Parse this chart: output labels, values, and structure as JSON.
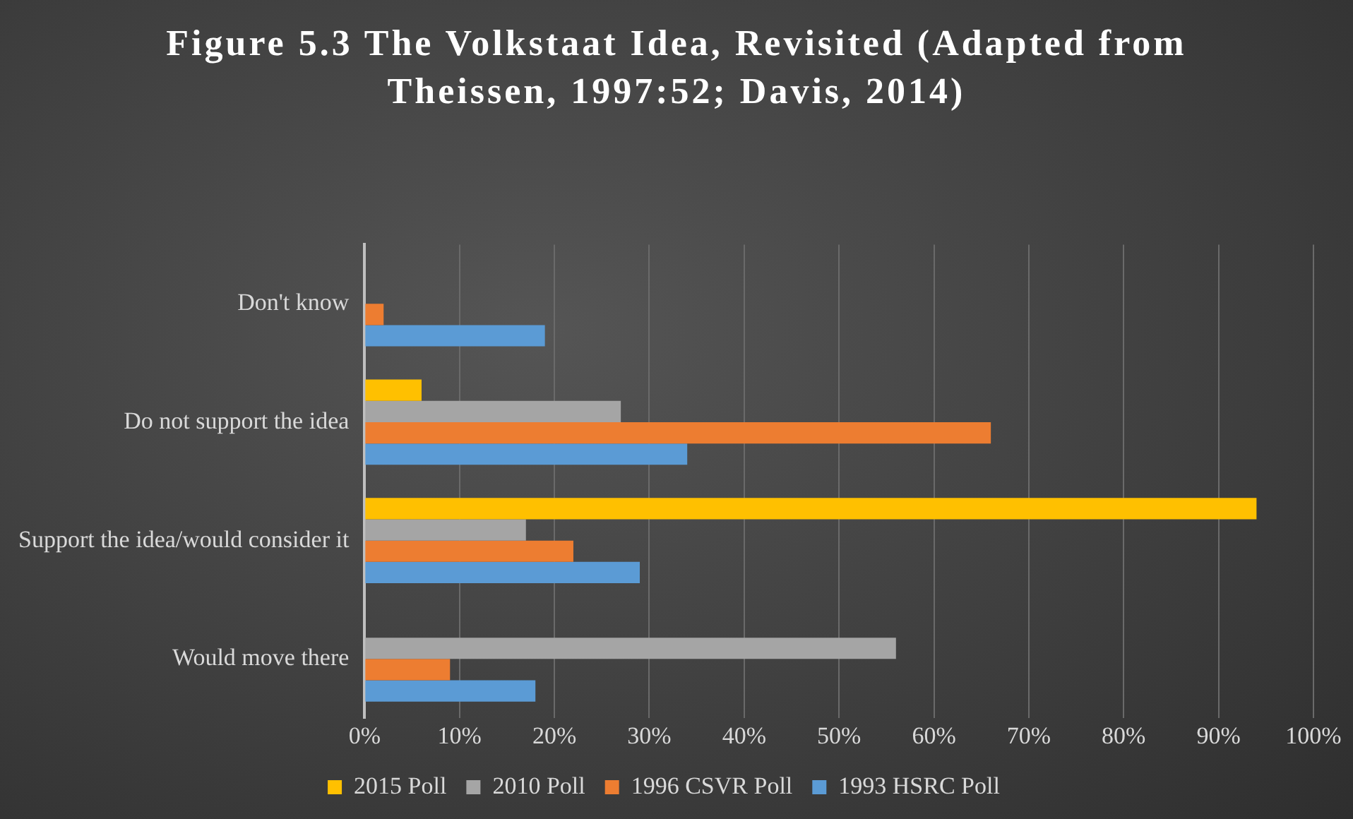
{
  "chart_data": {
    "type": "bar",
    "orientation": "horizontal",
    "title": "Figure 5.3 The Volkstaat Idea, Revisited (Adapted from Theissen, 1997:52; Davis, 2014)",
    "categories": [
      "Don't know",
      "Do not support the idea",
      "Support the idea/would consider it",
      "Would move there"
    ],
    "series": [
      {
        "name": "2015 Poll",
        "color": "#ffc000",
        "values": [
          null,
          6,
          94,
          null
        ]
      },
      {
        "name": "2010 Poll",
        "color": "#a5a5a5",
        "values": [
          null,
          27,
          17,
          56
        ]
      },
      {
        "name": "1996 CSVR Poll",
        "color": "#ed7d31",
        "values": [
          2,
          66,
          22,
          9
        ]
      },
      {
        "name": "1993 HSRC Poll",
        "color": "#5b9bd5",
        "values": [
          19,
          34,
          29,
          18
        ]
      }
    ],
    "xlim": [
      0,
      100
    ],
    "xticks": [
      {
        "value": 0,
        "label": "0%"
      },
      {
        "value": 10,
        "label": "10%"
      },
      {
        "value": 20,
        "label": "20%"
      },
      {
        "value": 30,
        "label": "30%"
      },
      {
        "value": 40,
        "label": "40%"
      },
      {
        "value": 50,
        "label": "50%"
      },
      {
        "value": 60,
        "label": "60%"
      },
      {
        "value": 70,
        "label": "70%"
      },
      {
        "value": 80,
        "label": "80%"
      },
      {
        "value": 90,
        "label": "90%"
      },
      {
        "value": 100,
        "label": "100%"
      }
    ],
    "grid": "x",
    "legend": "bottom"
  }
}
